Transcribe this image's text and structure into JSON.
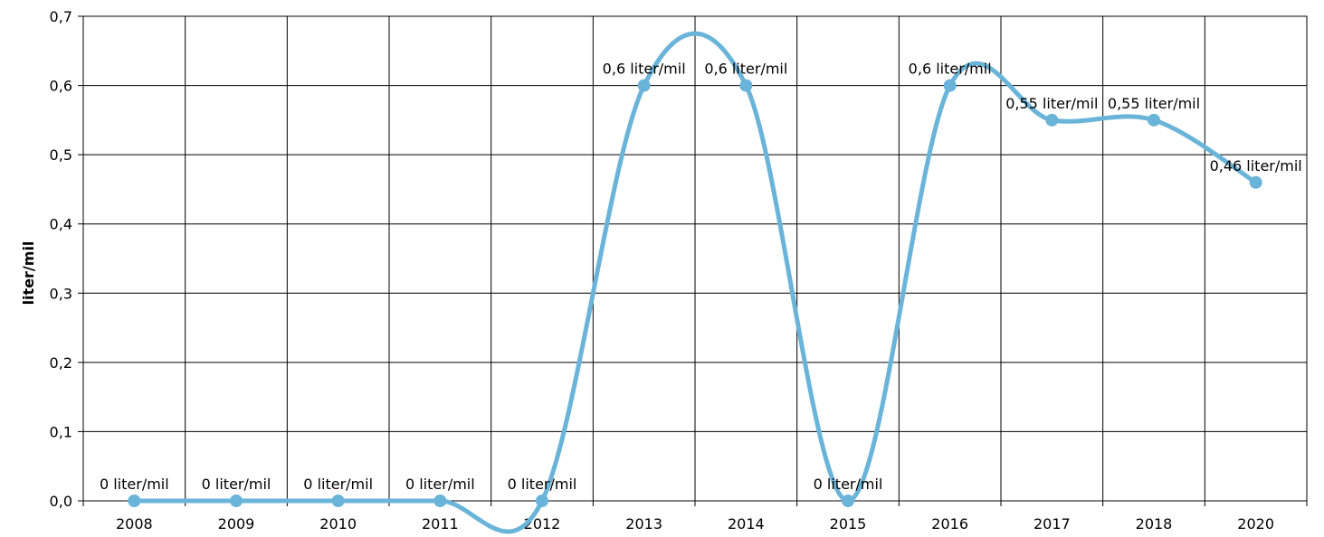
{
  "chart_data": {
    "type": "line",
    "title": "",
    "xlabel": "",
    "ylabel": "liter/mil",
    "categories": [
      "2008",
      "2009",
      "2010",
      "2011",
      "2012",
      "2013",
      "2014",
      "2015",
      "2016",
      "2017",
      "2018",
      "2020"
    ],
    "series": [
      {
        "values": [
          0,
          0,
          0,
          0,
          0,
          0.6,
          0.6,
          0,
          0.6,
          0.55,
          0.55,
          0.46
        ],
        "labels": [
          "0 liter/mil",
          "0 liter/mil",
          "0 liter/mil",
          "0 liter/mil",
          "0 liter/mil",
          "0,6 liter/mil",
          "0,6 liter/mil",
          "0 liter/mil",
          "0,6 liter/mil",
          "0,55 liter/mil",
          "0,55 liter/mil",
          "0,46 liter/mil"
        ],
        "color": "#6ab4da"
      }
    ],
    "ylim": [
      0,
      0.7
    ],
    "yticks": [
      "0,0",
      "0,1",
      "0,2",
      "0,3",
      "0,4",
      "0,5",
      "0,6",
      "0,7"
    ],
    "grid": true,
    "smooth": true,
    "legend": "none"
  }
}
